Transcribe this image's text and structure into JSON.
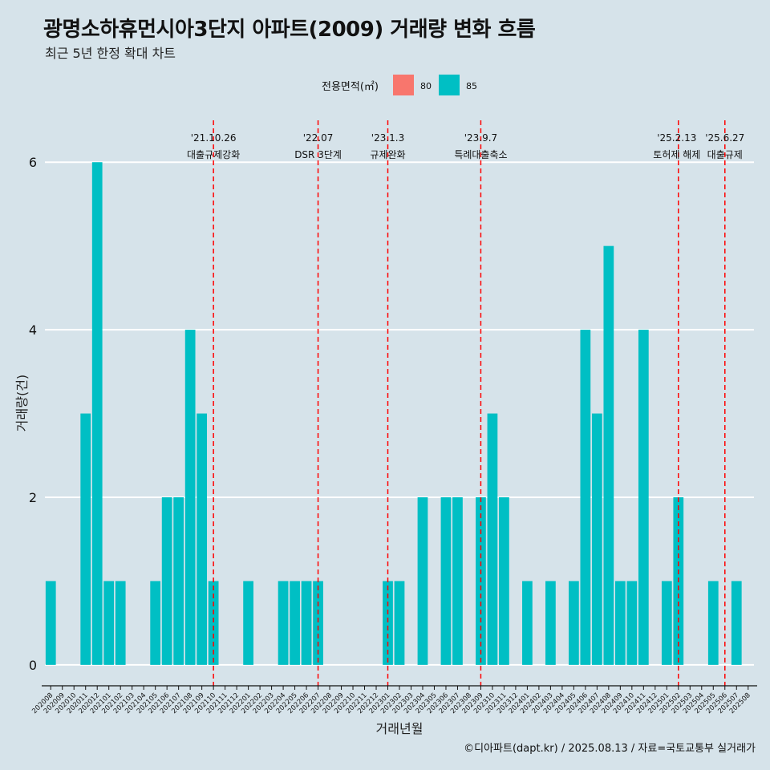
{
  "title": "광명소하휴먼시아3단지 아파트(2009) 거래량 변화 흐름",
  "subtitle": "최근 5년 한정 확대 차트",
  "caption": "©디아파트(dapt.kr) / 2025.08.13 / 자료=국토교통부 실거래가",
  "legend": {
    "title": "전용면적(㎡)",
    "items": [
      {
        "label": "80",
        "color": "#f8766d"
      },
      {
        "label": "85",
        "color": "#00bfc4"
      }
    ]
  },
  "chart_data": {
    "type": "bar",
    "xlabel": "거래년월",
    "ylabel": "거래량(건)",
    "ylim": [
      -0.25,
      6.5
    ],
    "yticks": [
      0,
      2,
      4,
      6
    ],
    "grid": true,
    "legend_position": "top",
    "categories": [
      "202008",
      "202009",
      "202010",
      "202011",
      "202012",
      "202101",
      "202102",
      "202103",
      "202104",
      "202105",
      "202106",
      "202107",
      "202108",
      "202109",
      "202110",
      "202111",
      "202112",
      "202201",
      "202202",
      "202203",
      "202204",
      "202205",
      "202206",
      "202207",
      "202208",
      "202209",
      "202210",
      "202211",
      "202212",
      "202301",
      "202302",
      "202303",
      "202304",
      "202305",
      "202306",
      "202307",
      "202308",
      "202309",
      "202310",
      "202311",
      "202312",
      "202401",
      "202402",
      "202403",
      "202404",
      "202405",
      "202406",
      "202407",
      "202408",
      "202409",
      "202410",
      "202411",
      "202412",
      "202501",
      "202502",
      "202503",
      "202504",
      "202505",
      "202506",
      "202507",
      "202508"
    ],
    "series": [
      {
        "name": "85",
        "color": "#00bfc4",
        "values": [
          1,
          0,
          0,
          3,
          6,
          1,
          1,
          0,
          0,
          1,
          2,
          2,
          4,
          3,
          1,
          0,
          0,
          1,
          0,
          0,
          1,
          1,
          1,
          1,
          0,
          0,
          0,
          0,
          0,
          1,
          1,
          0,
          2,
          0,
          2,
          2,
          0,
          2,
          3,
          2,
          0,
          1,
          0,
          1,
          0,
          1,
          4,
          3,
          5,
          1,
          1,
          4,
          0,
          1,
          2,
          0,
          0,
          1,
          0,
          1,
          0
        ]
      }
    ],
    "events": [
      {
        "date": "'21.10.26",
        "label": "대출규제강화",
        "position": "202110"
      },
      {
        "date": "'22.07",
        "label": "DSR 3단계",
        "position": "202207"
      },
      {
        "date": "'23.1.3",
        "label": "규제완화",
        "position": "202301"
      },
      {
        "date": "'23.9.7",
        "label": "특례대출축소",
        "position": "202309"
      },
      {
        "date": "'25.2.13",
        "label": "토허제 해제",
        "position": "202502"
      },
      {
        "date": "'25.6.27",
        "label": "대출규제",
        "position": "202506"
      }
    ]
  }
}
